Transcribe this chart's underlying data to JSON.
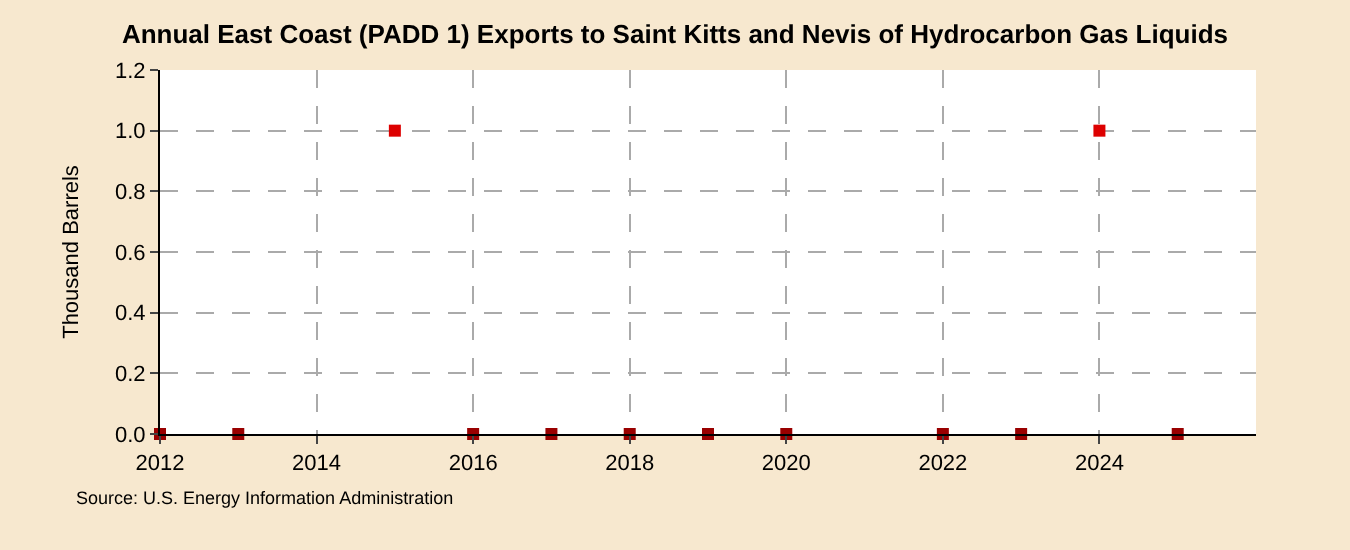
{
  "chart_data": {
    "type": "scatter",
    "title": "Annual East Coast (PADD 1) Exports to Saint Kitts and Nevis of Hydrocarbon Gas Liquids",
    "ylabel": "Thousand Barrels",
    "x": [
      2012,
      2013,
      2015,
      2016,
      2017,
      2018,
      2019,
      2020,
      2022,
      2023,
      2024,
      2025
    ],
    "values": [
      0,
      0,
      1,
      0,
      0,
      0,
      0,
      0,
      0,
      0,
      1,
      0
    ],
    "colors": [
      "#990000",
      "#990000",
      "#dd0000",
      "#990000",
      "#990000",
      "#990000",
      "#990000",
      "#990000",
      "#990000",
      "#990000",
      "#dd0000",
      "#990000"
    ],
    "xlim": [
      2012,
      2026
    ],
    "xticks": [
      2012,
      2014,
      2016,
      2018,
      2020,
      2022,
      2024
    ],
    "ylim": [
      0,
      1.2
    ],
    "yticks": [
      {
        "value": 0,
        "label": "0.0"
      },
      {
        "value": 0.2,
        "label": "0.2"
      },
      {
        "value": 0.4,
        "label": "0.4"
      },
      {
        "value": 0.6,
        "label": "0.6"
      },
      {
        "value": 0.8,
        "label": "0.8"
      },
      {
        "value": 1,
        "label": "1.0"
      },
      {
        "value": 1.2,
        "label": "1.2"
      }
    ],
    "grid": true,
    "marker": "square",
    "legend": false,
    "annotations": [
      "Source: U.S. Energy Information Administration"
    ]
  }
}
